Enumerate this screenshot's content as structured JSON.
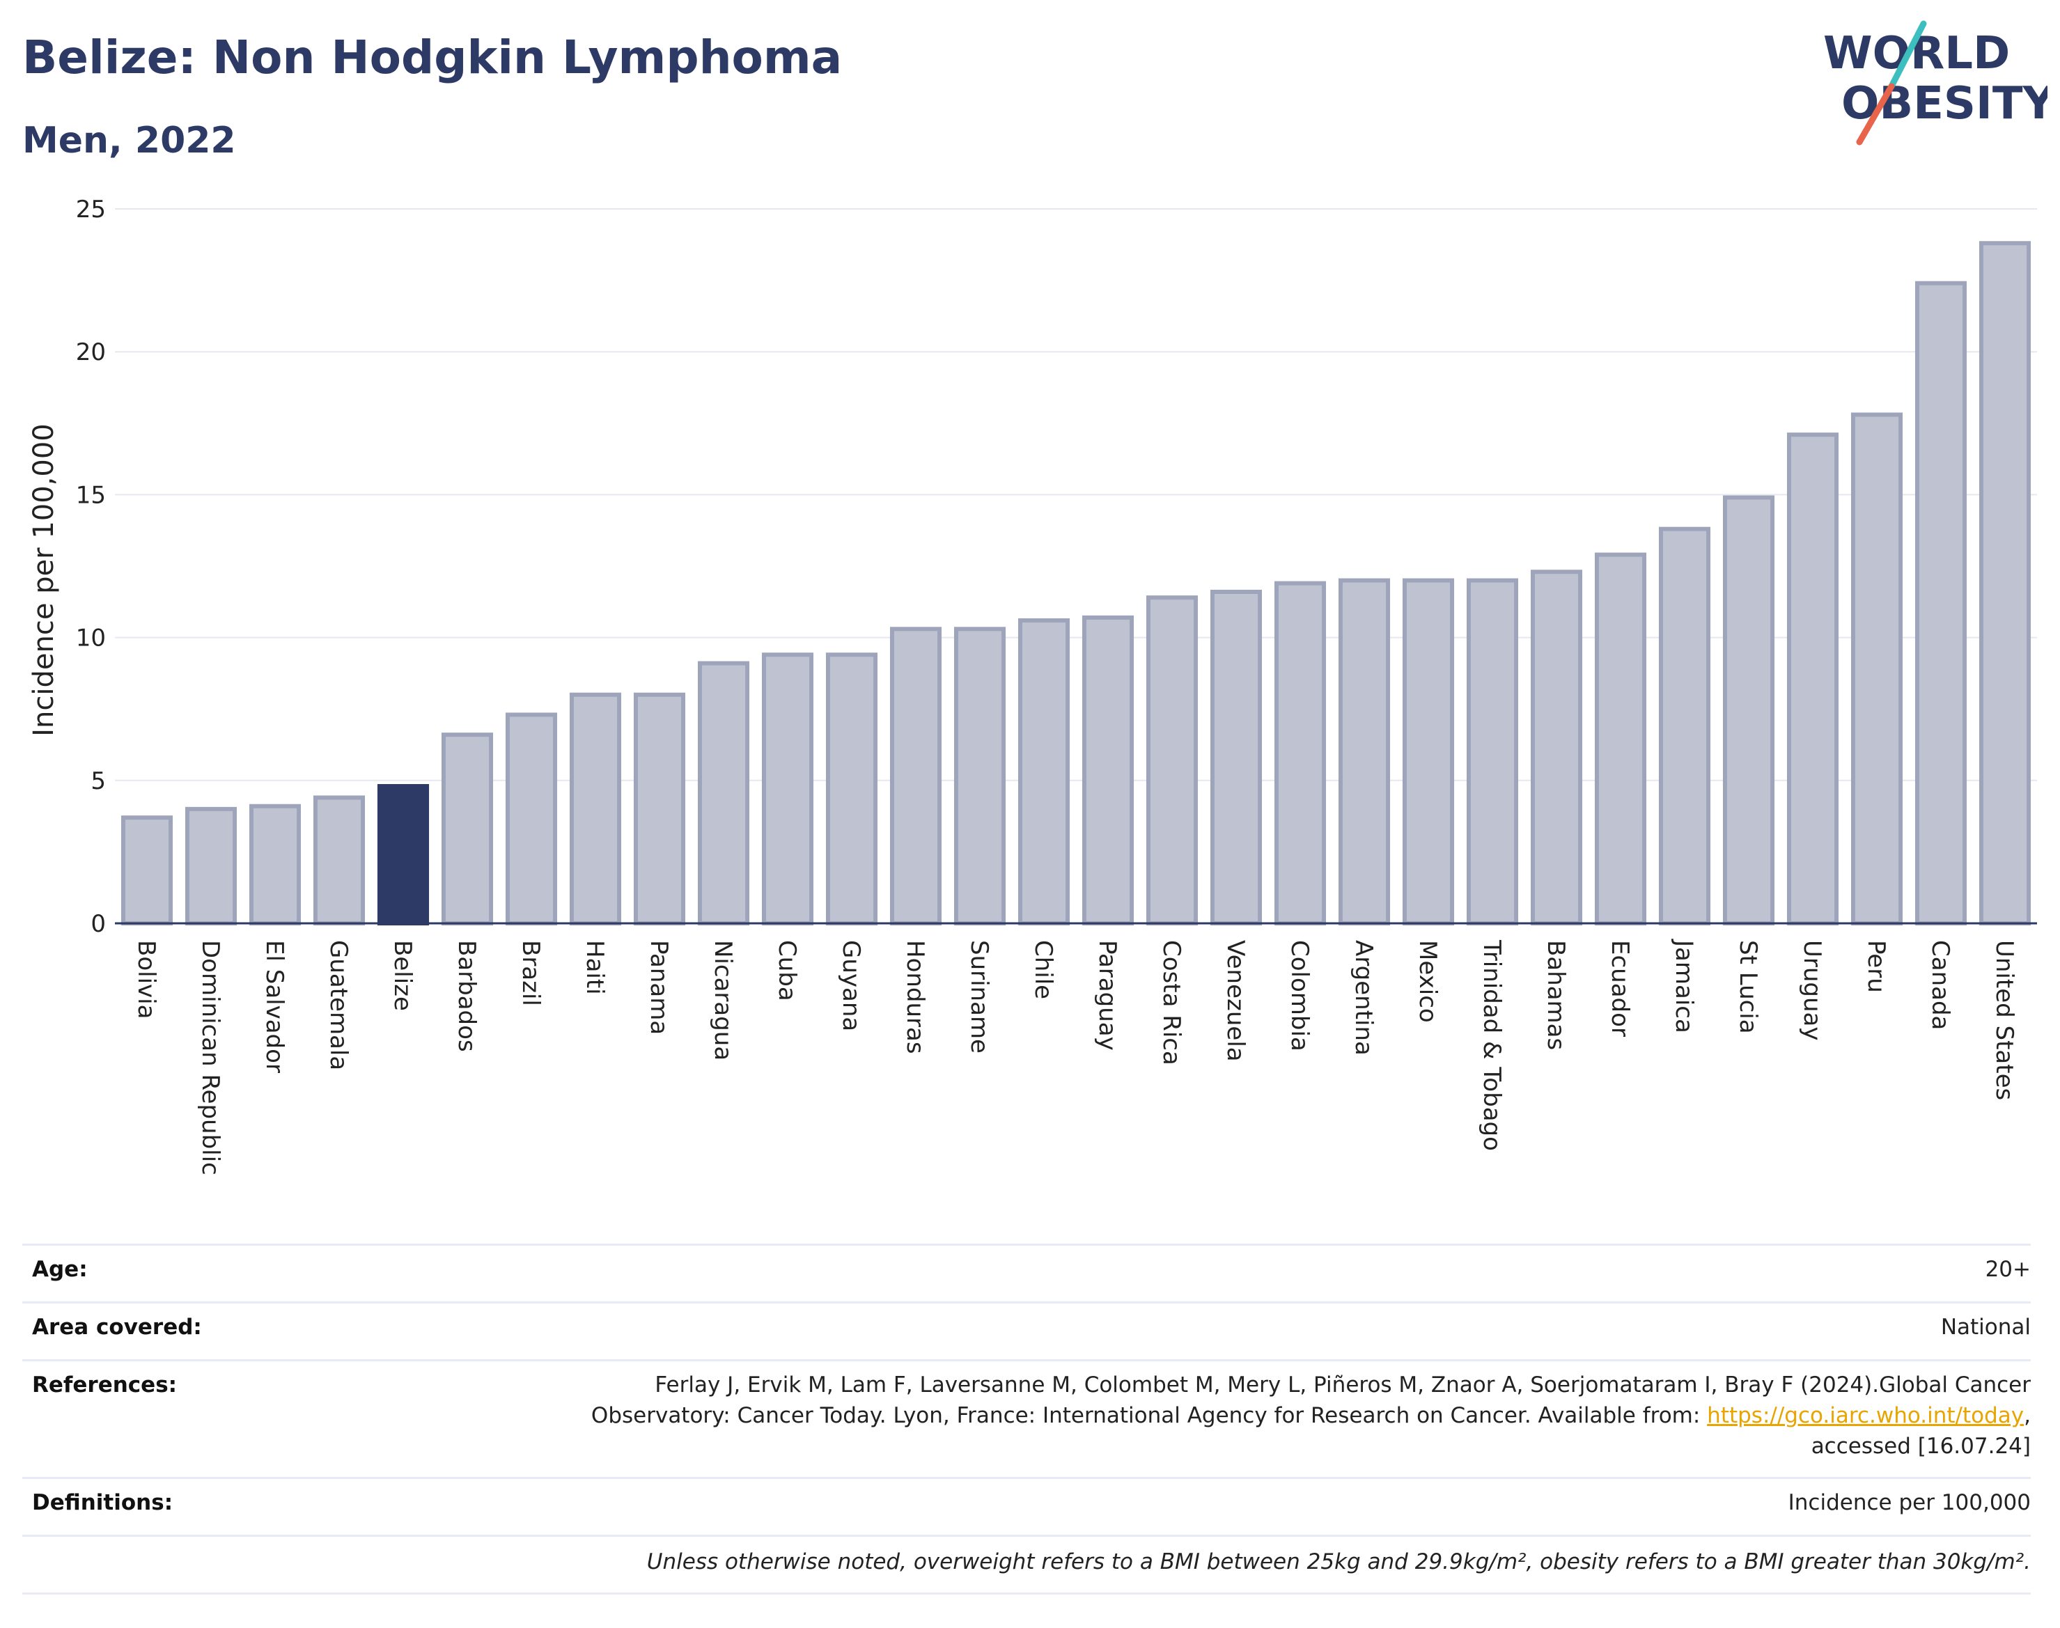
{
  "header": {
    "title": "Belize: Non Hodgkin Lymphoma",
    "subtitle": "Men, 2022"
  },
  "logo": {
    "line1": "WORLD",
    "line2": "OBESITY"
  },
  "colors": {
    "highlight": "#2d3a66",
    "bar": "#bfc3d1",
    "bar_edge": "#9ea4b9",
    "title": "#2d3a66",
    "link": "#e8a400",
    "logo_teal": "#3dbfbf",
    "logo_red": "#e8644a"
  },
  "chart_data": {
    "type": "bar",
    "ylabel": "Incidence per 100,000",
    "xlabel": "",
    "ylim": [
      0,
      25
    ],
    "yticks": [
      "0",
      "5",
      "10",
      "15",
      "20",
      "25"
    ],
    "grid": true,
    "highlight": "Belize",
    "categories": [
      "Bolivia",
      "Dominican Republic",
      "El Salvador",
      "Guatemala",
      "Belize",
      "Barbados",
      "Brazil",
      "Haiti",
      "Panama",
      "Nicaragua",
      "Cuba",
      "Guyana",
      "Honduras",
      "Suriname",
      "Chile",
      "Paraguay",
      "Costa Rica",
      "Venezuela",
      "Colombia",
      "Argentina",
      "Mexico",
      "Trinidad & Tobago",
      "Bahamas",
      "Ecuador",
      "Jamaica",
      "St Lucia",
      "Uruguay",
      "Peru",
      "Canada",
      "United States"
    ],
    "values": [
      3.7,
      4.0,
      4.1,
      4.4,
      4.8,
      6.6,
      7.3,
      8.0,
      8.0,
      9.1,
      9.4,
      9.4,
      10.3,
      10.3,
      10.6,
      10.7,
      11.4,
      11.6,
      11.9,
      12.0,
      12.0,
      12.0,
      12.3,
      12.9,
      13.8,
      14.9,
      17.1,
      17.8,
      22.4,
      23.8
    ]
  },
  "info": {
    "age_label": "Age:",
    "age_value": "20+",
    "area_label": "Area covered:",
    "area_value": "National",
    "references_label": "References:",
    "references_line1": "Ferlay J, Ervik M, Lam F, Laversanne M, Colombet M, Mery L, Piñeros M, Znaor A, Soerjomataram I, Bray F (2024).Global Cancer",
    "references_line2_pre": "Observatory: Cancer Today. Lyon, France: International Agency for Research on Cancer. Available from: ",
    "references_link": "https://gco.iarc.who.int/today",
    "references_line2_post": ",",
    "references_line3": "accessed [16.07.24]",
    "definitions_label": "Definitions:",
    "definitions_value": "Incidence per 100,000",
    "note": "Unless otherwise noted, overweight refers to a BMI between 25kg and 29.9kg/m², obesity refers to a BMI greater than 30kg/m²."
  }
}
